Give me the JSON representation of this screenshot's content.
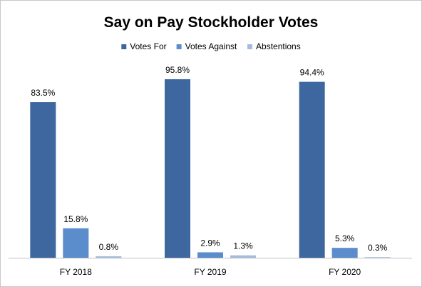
{
  "chart_data": {
    "type": "bar",
    "title": "Say on Pay Stockholder Votes",
    "categories": [
      "FY 2018",
      "FY 2019",
      "FY 2020"
    ],
    "series": [
      {
        "name": "Votes For",
        "values": [
          83.5,
          95.8,
          94.4
        ],
        "labels": [
          "83.5%",
          "95.8%",
          "94.4%"
        ],
        "color": "#3e679f"
      },
      {
        "name": "Votes Against",
        "values": [
          15.8,
          2.9,
          5.3
        ],
        "labels": [
          "15.8%",
          "2.9%",
          "5.3%"
        ],
        "color": "#5b8ccc"
      },
      {
        "name": "Abstentions",
        "values": [
          0.8,
          1.3,
          0.3
        ],
        "labels": [
          "0.8%",
          "1.3%",
          "0.3%"
        ],
        "color": "#a6bcdd"
      }
    ],
    "ylim": [
      0,
      100
    ],
    "grid": false,
    "legend_position": "top-center"
  },
  "colors": {
    "frame_border": "#c8c8c8",
    "axis_line": "#bfbfbf"
  }
}
